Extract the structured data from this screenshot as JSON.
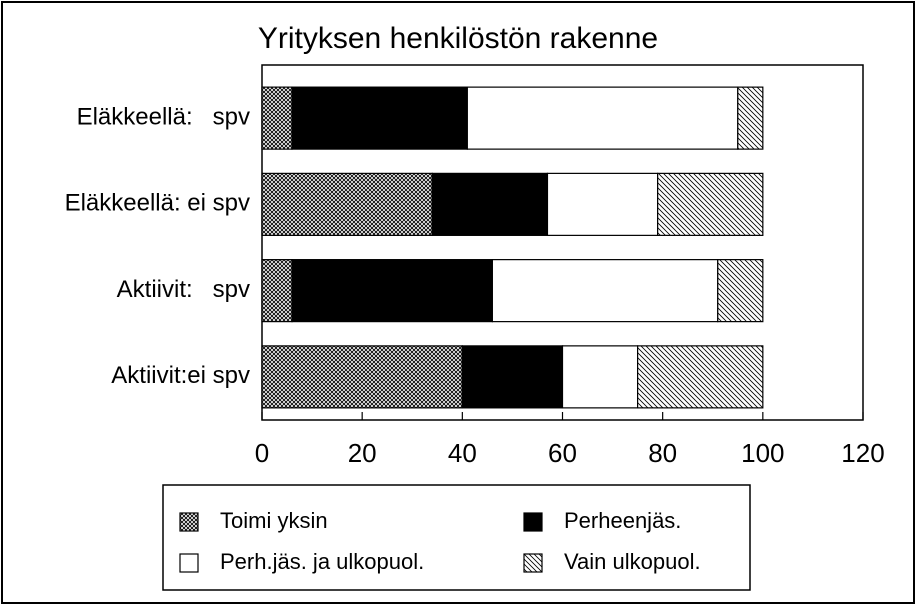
{
  "chart_data": {
    "type": "stacked-barh",
    "title": "Yrityksen henkilöstön rakenne",
    "categories": [
      "Eläkkeellä:   spv",
      "Eläkkeellä: ei spv",
      "Aktiivit:   spv",
      "Aktiivit:ei spv"
    ],
    "series": [
      {
        "name": "Toimi yksin",
        "color": "#000000",
        "pattern": "crosshatch",
        "values": [
          6,
          34,
          6,
          40
        ]
      },
      {
        "name": "Perheenjäs.",
        "color": "#000000",
        "pattern": "solid",
        "values": [
          35,
          23,
          40,
          20
        ]
      },
      {
        "name": "Perh.jäs. ja ulkopuol.",
        "color": "#ffffff",
        "pattern": "solid",
        "values": [
          54,
          22,
          45,
          15
        ]
      },
      {
        "name": "Vain ulkopuol.",
        "color": "#000000",
        "pattern": "diagonal",
        "values": [
          5,
          21,
          9,
          25
        ]
      }
    ],
    "xlim": [
      0,
      120
    ],
    "xticks": [
      0,
      20,
      40,
      60,
      80,
      100,
      120
    ]
  }
}
